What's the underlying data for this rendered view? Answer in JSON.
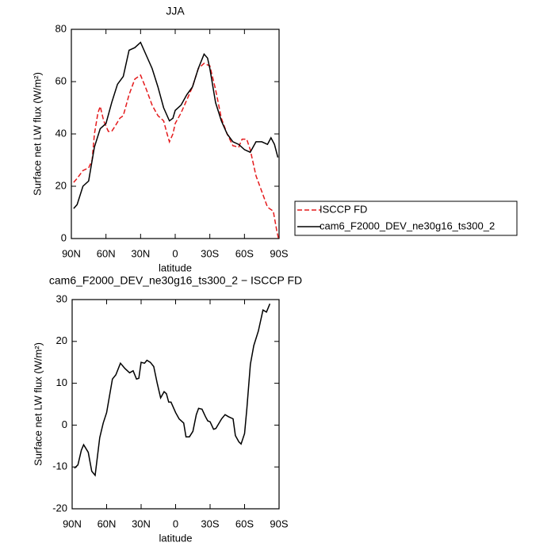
{
  "chart_data": [
    {
      "type": "line",
      "title": "JJA",
      "x_label": "latitude",
      "y_label": "Surface net LW flux (W/m²)",
      "xlim": [
        90,
        -90
      ],
      "ylim": [
        0,
        80
      ],
      "xticks": [
        {
          "value": 90,
          "label": "90N"
        },
        {
          "value": 60,
          "label": "60N"
        },
        {
          "value": 30,
          "label": "30N"
        },
        0,
        {
          "value": -30,
          "label": "30S"
        },
        {
          "value": -60,
          "label": "60S"
        },
        {
          "value": -90,
          "label": "90S"
        }
      ],
      "yticks": [
        0,
        20,
        40,
        60,
        80
      ],
      "legend": "right",
      "series": [
        {
          "name": "ISCCP FD",
          "color": "#e41a1c",
          "dash": true,
          "x": [
            88,
            85,
            80,
            75,
            72,
            70,
            67,
            65,
            62,
            58,
            55,
            52,
            48,
            45,
            40,
            35,
            30,
            25,
            20,
            15,
            10,
            7,
            5,
            2,
            0,
            -5,
            -10,
            -15,
            -20,
            -25,
            -30,
            -35,
            -40,
            -45,
            -50,
            -55,
            -58,
            -62,
            -65,
            -70,
            -75,
            -80,
            -85,
            -88,
            -89.5
          ],
          "values": [
            21.5,
            23,
            26,
            27,
            30,
            40,
            48,
            50.5,
            45,
            41,
            41,
            43,
            46,
            47,
            55,
            61,
            62.5,
            57,
            51,
            47,
            45,
            40,
            37,
            40,
            44,
            48,
            53,
            58,
            65,
            67,
            66,
            57,
            46,
            40,
            35.5,
            35,
            38,
            38,
            34,
            24,
            18,
            12,
            10.5,
            3,
            0
          ]
        },
        {
          "name": "cam6_F2000_DEV_ne30g16_ts300_2",
          "color": "#000000",
          "dash": false,
          "x": [
            88,
            85,
            80,
            75,
            70,
            65,
            60,
            55,
            50,
            45,
            40,
            35,
            30,
            25,
            20,
            15,
            10,
            5,
            2,
            0,
            -5,
            -10,
            -15,
            -20,
            -25,
            -28,
            -30,
            -35,
            -40,
            -45,
            -50,
            -55,
            -60,
            -65,
            -70,
            -75,
            -80,
            -83,
            -86,
            -89
          ],
          "values": [
            11.5,
            13,
            20,
            22,
            35,
            42,
            44,
            52,
            59,
            62,
            72,
            73,
            75,
            70,
            65,
            58,
            50,
            45,
            46,
            49,
            51,
            55,
            58,
            65,
            70.5,
            69,
            65,
            52,
            45,
            40,
            37,
            36,
            34,
            33,
            37,
            37,
            36,
            38.5,
            36,
            31
          ]
        }
      ]
    },
    {
      "type": "line",
      "title": "cam6_F2000_DEV_ne30g16_ts300_2 − ISCCP FD",
      "x_label": "latitude",
      "y_label": "Surface net LW flux (W/m²)",
      "xlim": [
        90,
        -90
      ],
      "ylim": [
        -20,
        30
      ],
      "xticks": [
        {
          "value": 90,
          "label": "90N"
        },
        {
          "value": 60,
          "label": "60N"
        },
        {
          "value": 30,
          "label": "30N"
        },
        0,
        {
          "value": -30,
          "label": "30S"
        },
        {
          "value": -60,
          "label": "60S"
        },
        {
          "value": -90,
          "label": "90S"
        }
      ],
      "yticks": [
        -20,
        -10,
        0,
        10,
        20,
        30
      ],
      "series": [
        {
          "color": "#000000",
          "dash": false,
          "x": [
            88,
            85,
            82,
            80,
            76,
            73,
            70,
            66,
            63,
            60,
            55,
            52,
            48,
            44,
            40,
            37,
            34,
            32,
            30,
            27,
            25,
            22,
            19,
            16,
            13,
            10,
            8,
            6,
            4,
            0,
            -3,
            -7,
            -9,
            -12,
            -15,
            -18,
            -20,
            -23,
            -26,
            -28,
            -30,
            -33,
            -35,
            -40,
            -43,
            -46,
            -50,
            -52,
            -55,
            -57,
            -60,
            -62,
            -65,
            -68,
            -72,
            -76,
            -79,
            -82
          ],
          "values": [
            -10.3,
            -9.5,
            -6,
            -4.7,
            -6.5,
            -11,
            -12,
            -3,
            0.5,
            3,
            11,
            12,
            14.8,
            13.5,
            12.5,
            13,
            11,
            11.2,
            15,
            14.8,
            15.5,
            15,
            14,
            10,
            6.5,
            8,
            7.5,
            5.5,
            5.5,
            3,
            1.5,
            0.5,
            -2.8,
            -2.8,
            -1.5,
            2.5,
            4,
            3.8,
            2,
            1,
            0.8,
            -1,
            -0.8,
            1.5,
            2.5,
            2,
            1.5,
            -2.5,
            -4,
            -4.5,
            -2,
            4,
            14.5,
            19,
            22.5,
            27.5,
            27,
            29
          ]
        }
      ]
    }
  ]
}
